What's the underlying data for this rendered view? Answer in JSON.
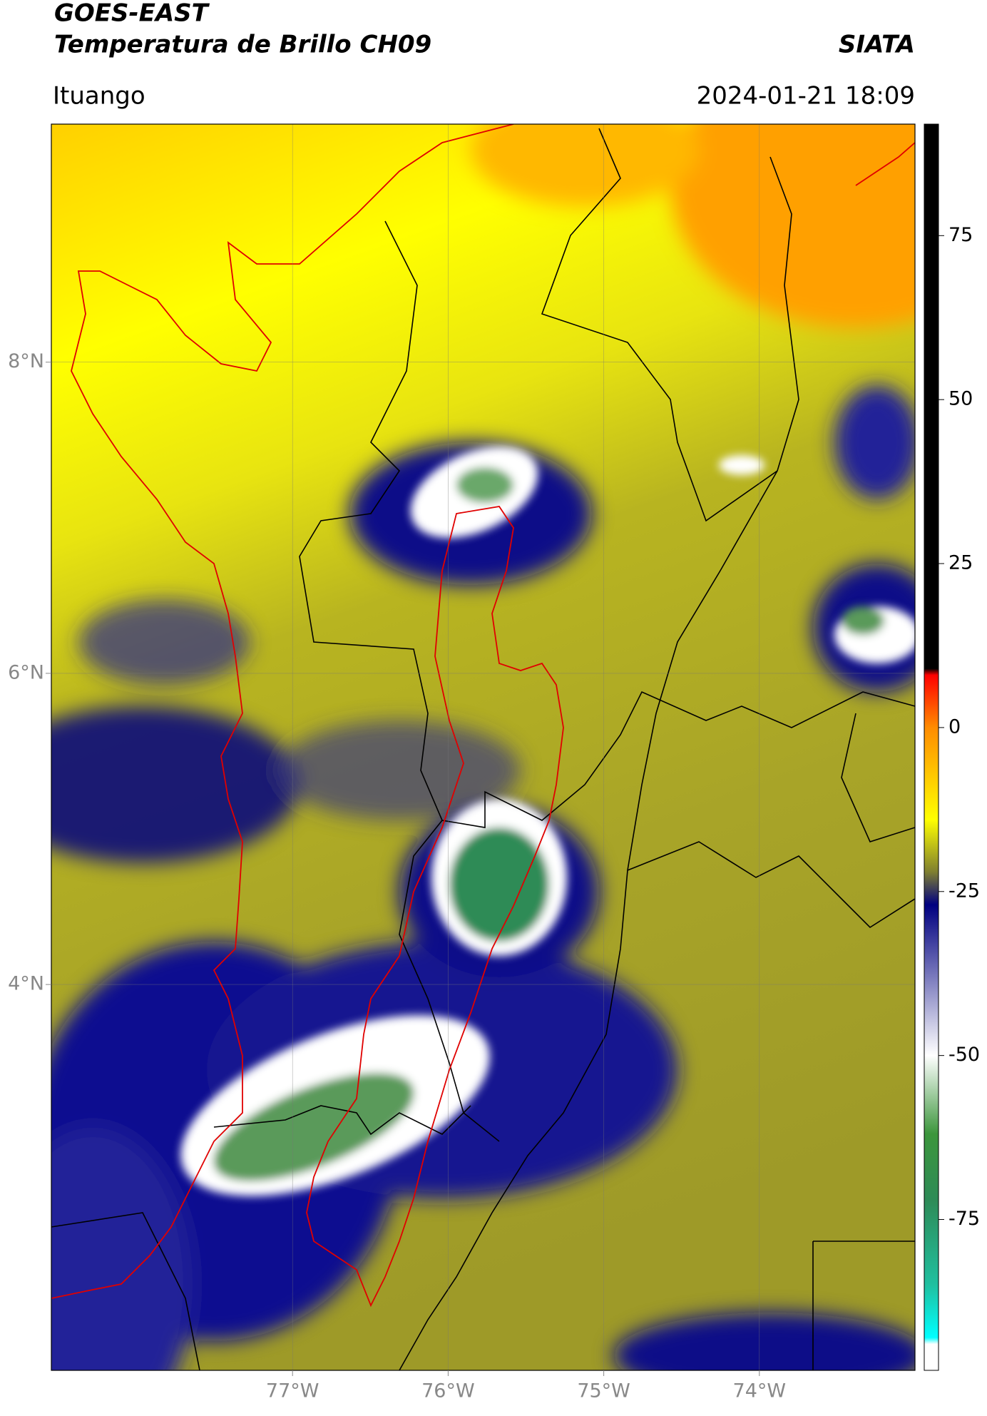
{
  "chart_data": {
    "type": "map",
    "title": "GOES-EAST",
    "subtitle": "Temperatura de Brillo CH09",
    "source": "SIATA",
    "location": "Ituango",
    "datetime": "2024-01-21 18:09",
    "xlim": [
      -78.55,
      -73.0
    ],
    "ylim": [
      1.52,
      9.53
    ],
    "xticks": [
      {
        "value": -77,
        "label": "77°W"
      },
      {
        "value": -76,
        "label": "76°W"
      },
      {
        "value": -75,
        "label": "75°W"
      },
      {
        "value": -74,
        "label": "74°W"
      }
    ],
    "yticks": [
      {
        "value": 8,
        "label": "8°N"
      },
      {
        "value": 6,
        "label": "6°N"
      },
      {
        "value": 4,
        "label": "4°N"
      }
    ],
    "grid": true,
    "colorbar": {
      "lim": [
        -98,
        92
      ],
      "ticks": [
        75,
        50,
        25,
        0,
        -25,
        -50,
        -75
      ],
      "colormap": [
        {
          "value": 92,
          "color": "#000000"
        },
        {
          "value": 9,
          "color": "#000000"
        },
        {
          "value": 8,
          "color": "#ff0000"
        },
        {
          "value": 0,
          "color": "#ff8c00"
        },
        {
          "value": -14,
          "color": "#ffff00"
        },
        {
          "value": -22,
          "color": "#7f7f30"
        },
        {
          "value": -27,
          "color": "#000080"
        },
        {
          "value": -50,
          "color": "#ffffff"
        },
        {
          "value": -62,
          "color": "#3c963c"
        },
        {
          "value": -72,
          "color": "#2e8b57"
        },
        {
          "value": -85,
          "color": "#20c0a0"
        },
        {
          "value": -93,
          "color": "#00ffff"
        },
        {
          "value": -94,
          "color": "#ffffff"
        },
        {
          "value": -98,
          "color": "#ffffff"
        }
      ]
    }
  }
}
